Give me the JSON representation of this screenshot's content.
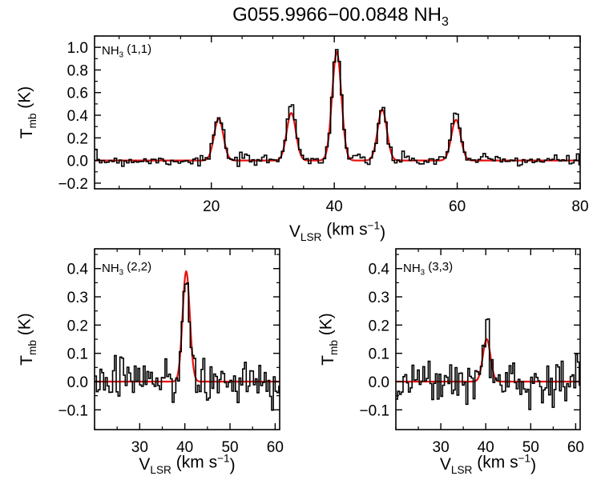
{
  "title": {
    "main": "G055.9966−00.0848 NH",
    "sub": "3"
  },
  "colors": {
    "observed": "#000000",
    "fit": "#e8110f",
    "axis": "#000000"
  },
  "chart_data": [
    {
      "id": "top",
      "type": "line",
      "panel_label": {
        "main": "NH",
        "sub": "3",
        "rest": " (1,1)"
      },
      "xlabel": {
        "main": "V",
        "sub": "LSR",
        "rest": " (km s",
        "sup": "−1",
        "end": ")"
      },
      "ylabel": {
        "main": "T",
        "sub": "mb",
        "rest": " (K)"
      },
      "xlim": [
        1,
        80
      ],
      "ylim": [
        -0.25,
        1.1
      ],
      "xticks": [
        20,
        40,
        60,
        80
      ],
      "yticks": [
        -0.2,
        0.0,
        0.2,
        0.4,
        0.6,
        0.8,
        1.0
      ],
      "ytick_labels": [
        "−0.2",
        "0.0",
        "0.2",
        "0.4",
        "0.6",
        "0.8",
        "1.0"
      ],
      "series": [
        {
          "style": "fit",
          "components": [
            {
              "center": 21.2,
              "amplitude": 0.37,
              "sigma": 0.75
            },
            {
              "center": 33.0,
              "amplitude": 0.42,
              "sigma": 0.75
            },
            {
              "center": 40.4,
              "amplitude": 0.96,
              "sigma": 0.75
            },
            {
              "center": 47.8,
              "amplitude": 0.45,
              "sigma": 0.75
            },
            {
              "center": 59.8,
              "amplitude": 0.36,
              "sigma": 0.75
            }
          ]
        },
        {
          "style": "observed",
          "peaks": [
            {
              "center": 21.2,
              "amplitude": 0.38,
              "sigma": 0.75
            },
            {
              "center": 33.0,
              "amplitude": 0.52,
              "sigma": 0.75
            },
            {
              "center": 40.4,
              "amplitude": 1.0,
              "sigma": 0.75
            },
            {
              "center": 47.8,
              "amplitude": 0.44,
              "sigma": 0.75
            },
            {
              "center": 59.8,
              "amplitude": 0.43,
              "sigma": 0.75
            }
          ],
          "noise_rms": 0.025,
          "channel_width": 0.4
        }
      ]
    },
    {
      "id": "bottom-left",
      "type": "line",
      "panel_label": {
        "main": "NH",
        "sub": "3",
        "rest": " (2,2)"
      },
      "xlabel": {
        "main": "V",
        "sub": "LSR",
        "rest": " (km s",
        "sup": "−1",
        "end": ")"
      },
      "ylabel": {
        "main": "T",
        "sub": "mb",
        "rest": " (K)"
      },
      "xlim": [
        20,
        61
      ],
      "ylim": [
        -0.17,
        0.47
      ],
      "xticks": [
        30,
        40,
        50,
        60
      ],
      "yticks": [
        -0.1,
        0.0,
        0.1,
        0.2,
        0.3,
        0.4
      ],
      "ytick_labels": [
        "−0.1",
        "0.0",
        "0.1",
        "0.2",
        "0.3",
        "0.4"
      ],
      "series": [
        {
          "style": "fit",
          "components": [
            {
              "center": 40.3,
              "amplitude": 0.39,
              "sigma": 0.8
            }
          ]
        },
        {
          "style": "observed",
          "peaks": [
            {
              "center": 40.3,
              "amplitude": 0.39,
              "sigma": 0.8
            }
          ],
          "noise_rms": 0.045,
          "channel_width": 0.4
        }
      ]
    },
    {
      "id": "bottom-right",
      "type": "line",
      "panel_label": {
        "main": "NH",
        "sub": "3",
        "rest": " (3,3)"
      },
      "xlabel": {
        "main": "V",
        "sub": "LSR",
        "rest": " (km s",
        "sup": "−1",
        "end": ")"
      },
      "ylabel": {
        "main": "T",
        "sub": "mb",
        "rest": " (K)"
      },
      "xlim": [
        20,
        61
      ],
      "ylim": [
        -0.17,
        0.47
      ],
      "xticks": [
        30,
        40,
        50,
        60
      ],
      "yticks": [
        -0.1,
        0.0,
        0.1,
        0.2,
        0.3,
        0.4
      ],
      "ytick_labels": [
        "−0.1",
        "0.0",
        "0.1",
        "0.2",
        "0.3",
        "0.4"
      ],
      "series": [
        {
          "style": "fit",
          "components": [
            {
              "center": 40.2,
              "amplitude": 0.15,
              "sigma": 0.85
            }
          ]
        },
        {
          "style": "observed",
          "peaks": [
            {
              "center": 40.2,
              "amplitude": 0.17,
              "sigma": 0.85
            }
          ],
          "noise_rms": 0.04,
          "channel_width": 0.4
        }
      ]
    }
  ]
}
